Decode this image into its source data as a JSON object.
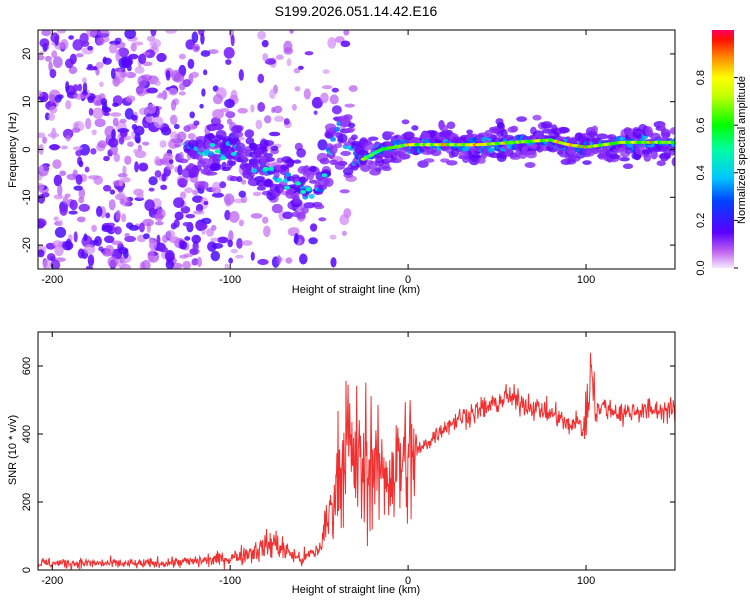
{
  "title": "S199.2026.051.14.42.E16",
  "colors": {
    "snr_line": "#f03030",
    "background": "#ffffff",
    "frame": "#000000"
  },
  "chart_data": [
    {
      "type": "heatmap",
      "xlabel": "Height of straight line (km)",
      "ylabel": "Frequency (Hz)",
      "xlim": [
        -208,
        150
      ],
      "ylim": [
        -25,
        25
      ],
      "x_ticks": [
        -200,
        -100,
        0,
        100
      ],
      "x_tick_labels": [
        "-200",
        "-100",
        "0",
        "100"
      ],
      "y_ticks": [
        -20,
        -10,
        0,
        10,
        20
      ],
      "y_tick_labels": [
        "-20",
        "-10",
        "0",
        "10",
        "20"
      ],
      "ridge": {
        "description": "Dominant frequency track",
        "points": [
          [
            -120,
            -1
          ],
          [
            -100,
            0
          ],
          [
            -90,
            -2
          ],
          [
            -80,
            -4
          ],
          [
            -70,
            -6
          ],
          [
            -60,
            -8
          ],
          [
            -50,
            -9
          ],
          [
            -40,
            5
          ],
          [
            -35,
            1
          ],
          [
            -25,
            -2
          ],
          [
            -15,
            0
          ],
          [
            0,
            1
          ],
          [
            20,
            1
          ],
          [
            40,
            1
          ],
          [
            60,
            1.5
          ],
          [
            80,
            2
          ],
          [
            90,
            1
          ],
          [
            100,
            0.5
          ],
          [
            120,
            1.5
          ],
          [
            150,
            1.5
          ]
        ]
      },
      "colorbar": {
        "label": "Normalized spectral amplitude",
        "range": [
          0,
          1
        ],
        "ticks": [
          0.0,
          0.2,
          0.4,
          0.6,
          0.8
        ],
        "tick_labels": [
          "0.0",
          "0.2",
          "0.4",
          "0.6",
          "0.8"
        ]
      }
    },
    {
      "type": "line",
      "xlabel": "Height of straight line (km)",
      "ylabel": "SNR (10 * v/v)",
      "xlim": [
        -208,
        150
      ],
      "ylim": [
        0,
        700
      ],
      "x_ticks": [
        -200,
        -100,
        0,
        100
      ],
      "x_tick_labels": [
        "-200",
        "-100",
        "0",
        "100"
      ],
      "y_ticks": [
        0,
        200,
        400,
        600
      ],
      "y_tick_labels": [
        "0",
        "200",
        "400",
        "600"
      ],
      "series": [
        {
          "name": "SNR",
          "x": [
            -208,
            -180,
            -150,
            -120,
            -100,
            -90,
            -80,
            -75,
            -70,
            -60,
            -50,
            -45,
            -40,
            -35,
            -30,
            -25,
            -20,
            -15,
            -10,
            -5,
            0,
            10,
            20,
            30,
            40,
            50,
            55,
            60,
            70,
            80,
            85,
            90,
            95,
            100,
            103,
            105,
            110,
            120,
            130,
            140,
            150
          ],
          "values": [
            20,
            20,
            18,
            25,
            35,
            50,
            70,
            80,
            60,
            30,
            60,
            150,
            250,
            320,
            350,
            270,
            300,
            280,
            290,
            310,
            320,
            370,
            420,
            450,
            470,
            490,
            510,
            500,
            480,
            460,
            450,
            420,
            440,
            400,
            600,
            470,
            480,
            460,
            470,
            470,
            470
          ]
        }
      ]
    }
  ]
}
